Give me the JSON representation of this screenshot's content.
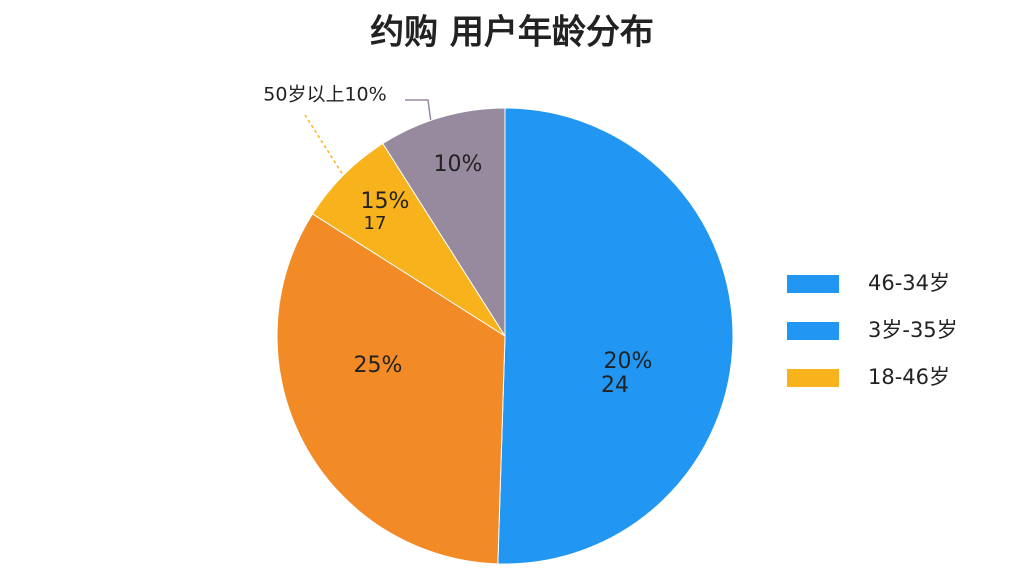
{
  "chart_data": {
    "type": "pie",
    "title": "约购 用户年龄分布",
    "categories": [
      null,
      null,
      null,
      null
    ],
    "values": [
      50.5,
      33.5,
      7,
      9
    ],
    "colors": [
      "#2196f3",
      "#f28a26",
      "#f8b21c",
      "#988a9e"
    ],
    "annotations": [
      "20%",
      "24",
      "25%",
      "15%",
      "17",
      "10%",
      "50岁以上10%"
    ],
    "legend": [
      {
        "label": "46-34岁",
        "color": "#2196f3"
      },
      {
        "label": "3岁-35岁",
        "color": "#2196f3"
      },
      {
        "label": "18-46岁",
        "color": "#f8b21c"
      }
    ]
  }
}
